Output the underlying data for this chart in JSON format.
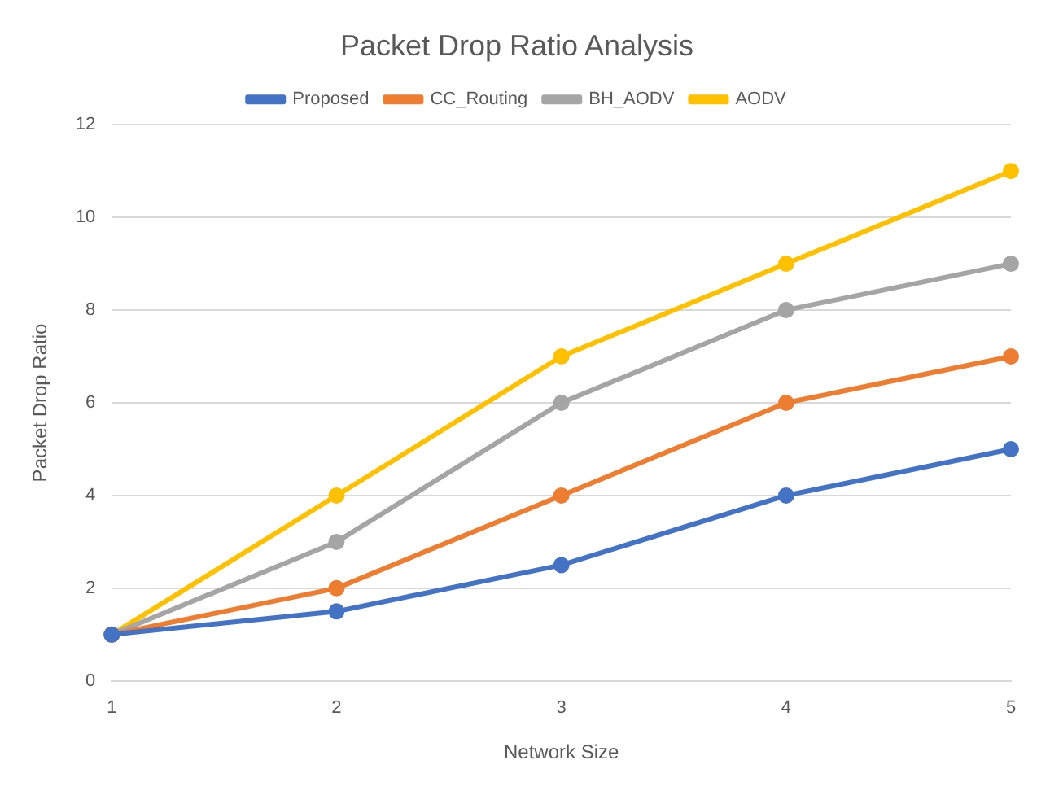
{
  "chart_data": {
    "type": "line",
    "title": "Packet Drop Ratio Analysis",
    "xlabel": "Network Size",
    "ylabel": "Packet Drop Ratio",
    "categories": [
      "1",
      "2",
      "3",
      "4",
      "5"
    ],
    "series": [
      {
        "name": "Proposed",
        "color": "#4472c4",
        "values": [
          1,
          1.5,
          2.5,
          4,
          5
        ]
      },
      {
        "name": "CC_Routing",
        "color": "#ed7d31",
        "values": [
          1,
          2,
          4,
          6,
          7
        ]
      },
      {
        "name": "BH_AODV",
        "color": "#a5a5a5",
        "values": [
          1,
          3,
          6,
          8,
          9
        ]
      },
      {
        "name": "AODV",
        "color": "#ffc000",
        "values": [
          1,
          4,
          7,
          9,
          11
        ]
      }
    ],
    "ylim": [
      0,
      12
    ],
    "yticks": [
      0,
      2,
      4,
      6,
      8,
      10,
      12
    ],
    "grid": "y",
    "legend": "top",
    "marker": "circle",
    "line_style": "solid"
  }
}
